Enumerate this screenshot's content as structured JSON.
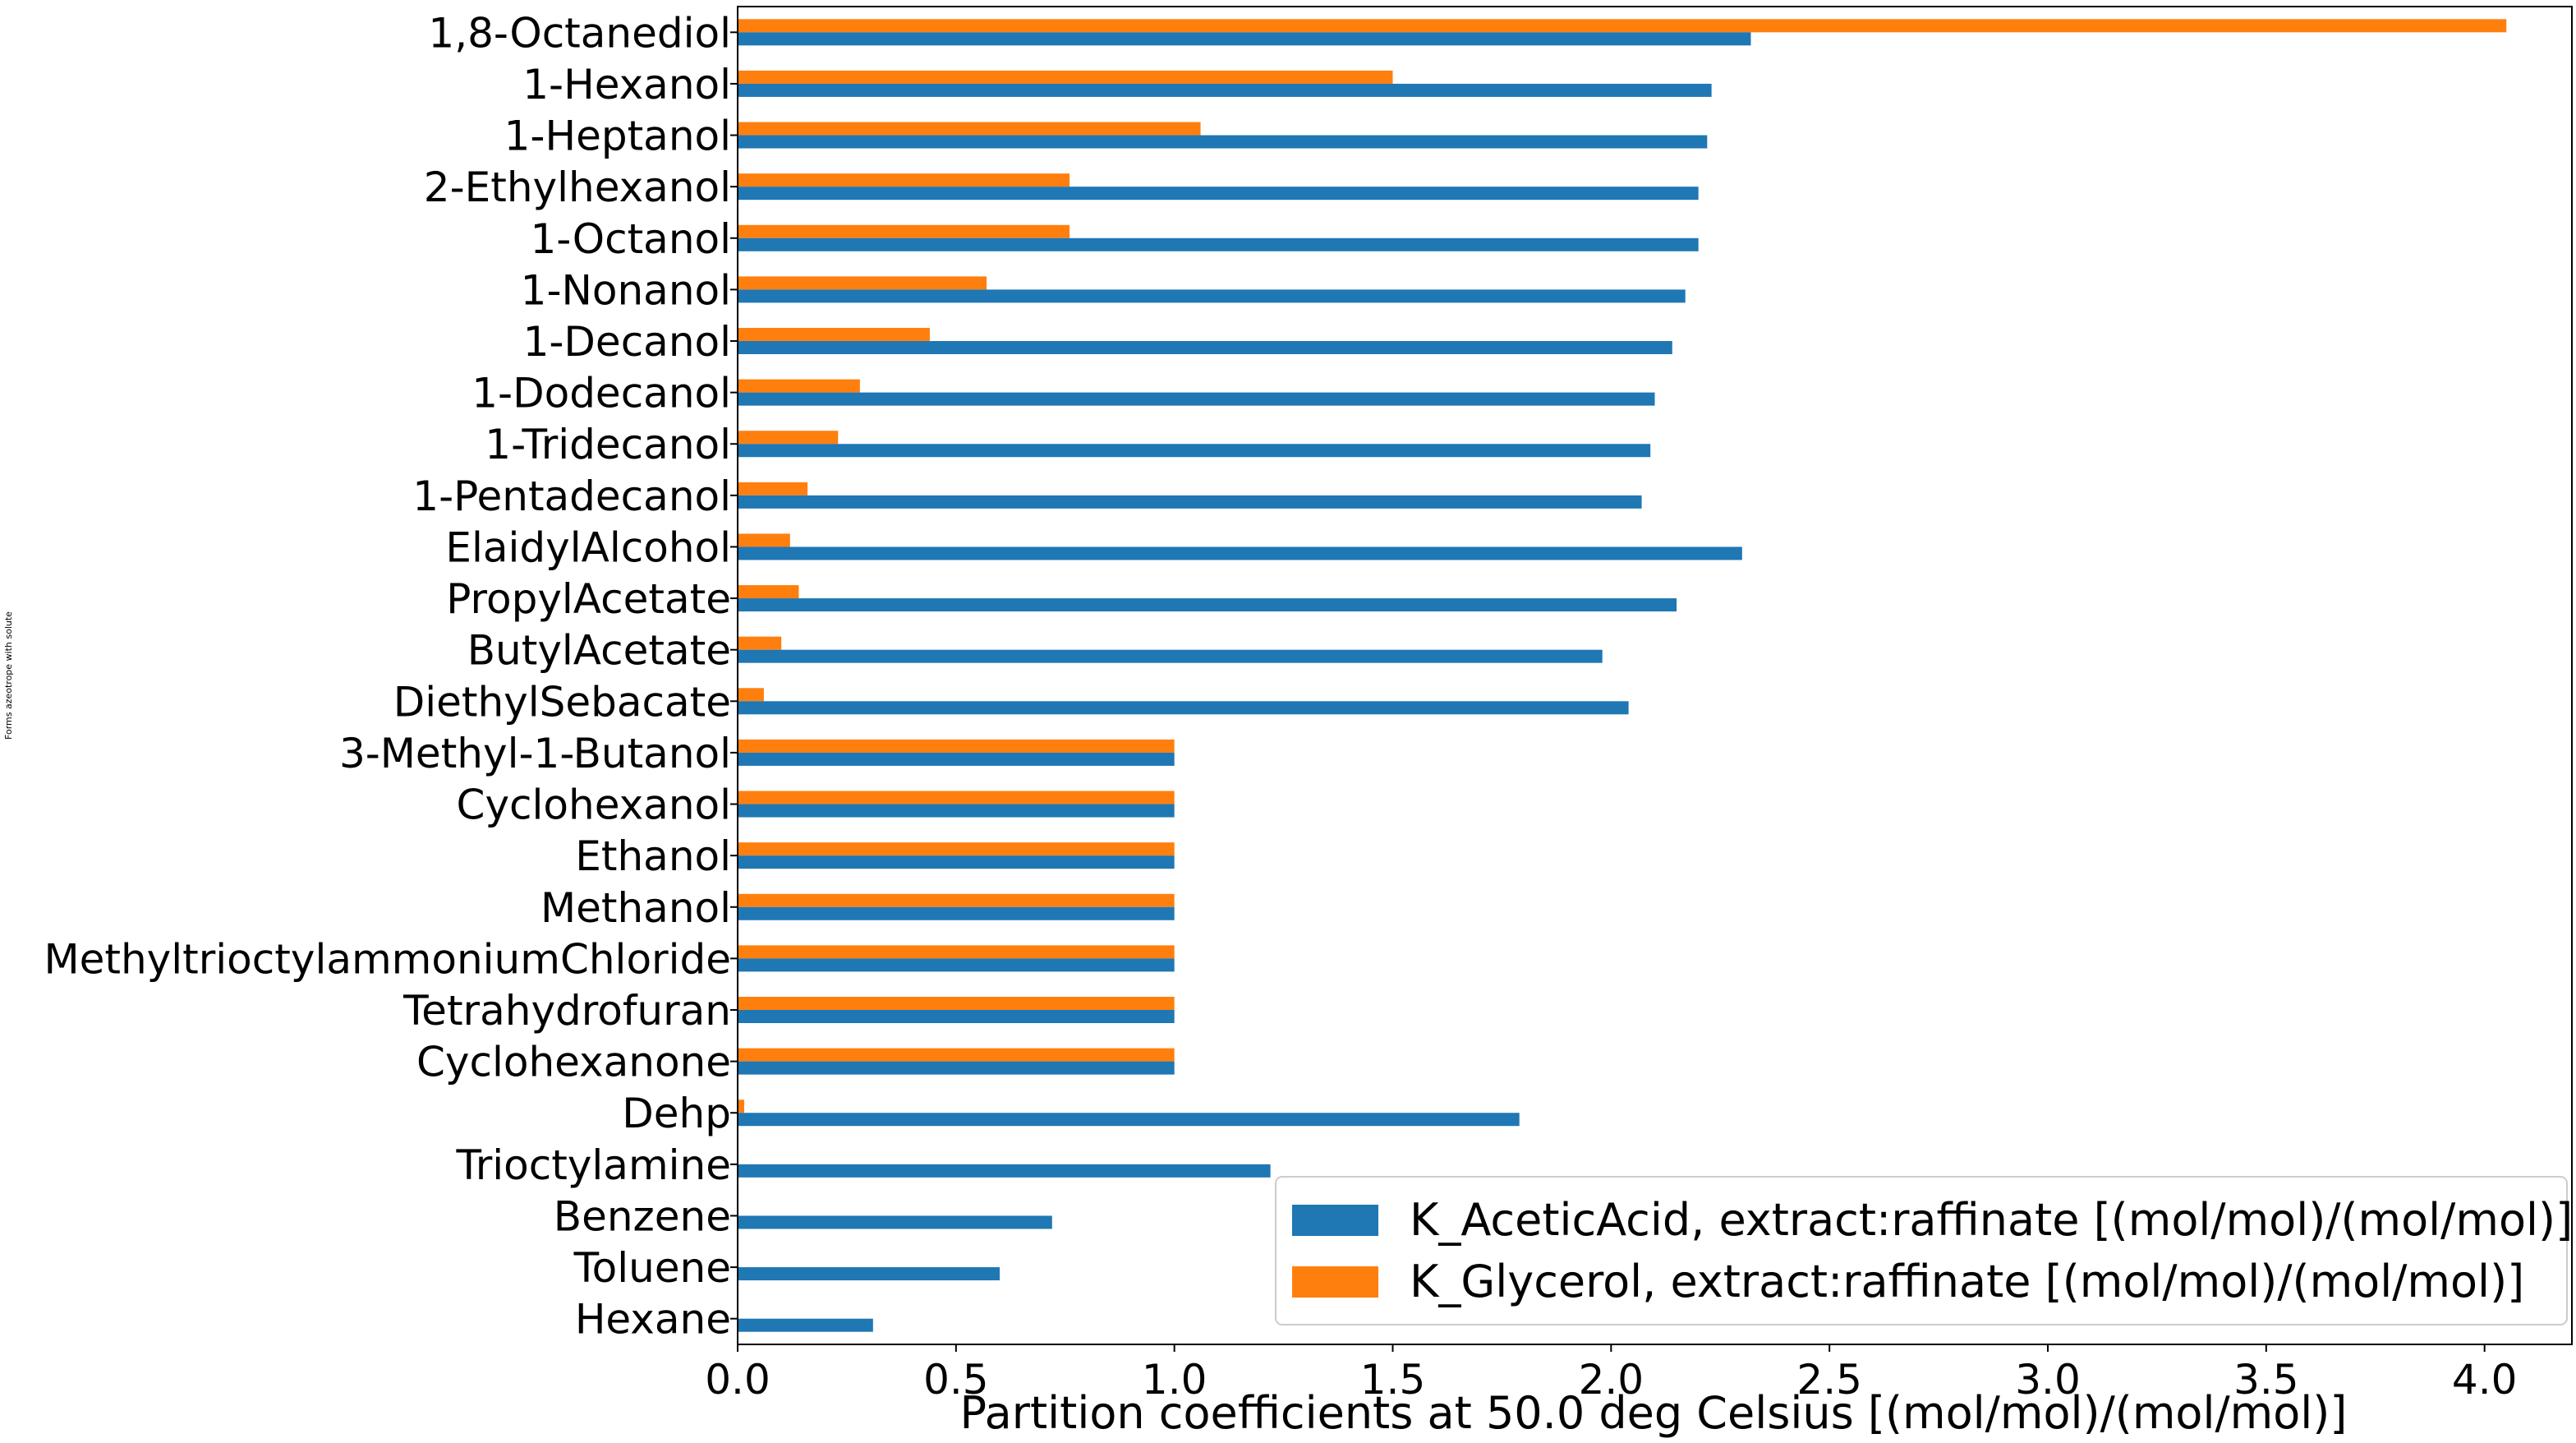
{
  "chart_data": {
    "type": "bar",
    "orientation": "horizontal",
    "xlabel": "Partition coefficients at 50.0 deg Celsius [(mol/mol)/(mol/mol)]",
    "ylabel": "Forms azeotrope with solute",
    "xlim": [
      0.0,
      4.2
    ],
    "xticks": [
      0.0,
      0.5,
      1.0,
      1.5,
      2.0,
      2.5,
      3.0,
      3.5,
      4.0
    ],
    "xtick_labels": [
      "0.0",
      "0.5",
      "1.0",
      "1.5",
      "2.0",
      "2.5",
      "3.0",
      "3.5",
      "4.0"
    ],
    "grid": false,
    "legend_position": "bottom-right",
    "categories": [
      "1,8-Octanediol",
      "1-Hexanol",
      "1-Heptanol",
      "2-Ethylhexanol",
      "1-Octanol",
      "1-Nonanol",
      "1-Decanol",
      "1-Dodecanol",
      "1-Tridecanol",
      "1-Pentadecanol",
      "ElaidylAlcohol",
      "PropylAcetate",
      "ButylAcetate",
      "DiethylSebacate",
      "3-Methyl-1-Butanol",
      "Cyclohexanol",
      "Ethanol",
      "Methanol",
      "MethyltrioctylammoniumChloride",
      "Tetrahydrofuran",
      "Cyclohexanone",
      "Dehp",
      "Trioctylamine",
      "Benzene",
      "Toluene",
      "Hexane"
    ],
    "series": [
      {
        "name": "K_AceticAcid, extract:raffinate [(mol/mol)/(mol/mol)]",
        "color": "#1f77b4",
        "values": [
          2.32,
          2.23,
          2.22,
          2.2,
          2.2,
          2.17,
          2.14,
          2.1,
          2.09,
          2.07,
          2.3,
          2.15,
          1.98,
          2.04,
          1.0,
          1.0,
          1.0,
          1.0,
          1.0,
          1.0,
          1.0,
          1.79,
          1.22,
          0.72,
          0.6,
          0.31
        ]
      },
      {
        "name": "K_Glycerol, extract:raffinate [(mol/mol)/(mol/mol)]",
        "color": "#ff7f0e",
        "values": [
          4.05,
          1.5,
          1.06,
          0.76,
          0.76,
          0.57,
          0.44,
          0.28,
          0.23,
          0.16,
          0.12,
          0.14,
          0.1,
          0.06,
          1.0,
          1.0,
          1.0,
          1.0,
          1.0,
          1.0,
          1.0,
          0.015,
          0.0,
          0.0,
          0.0,
          0.0
        ]
      }
    ]
  }
}
